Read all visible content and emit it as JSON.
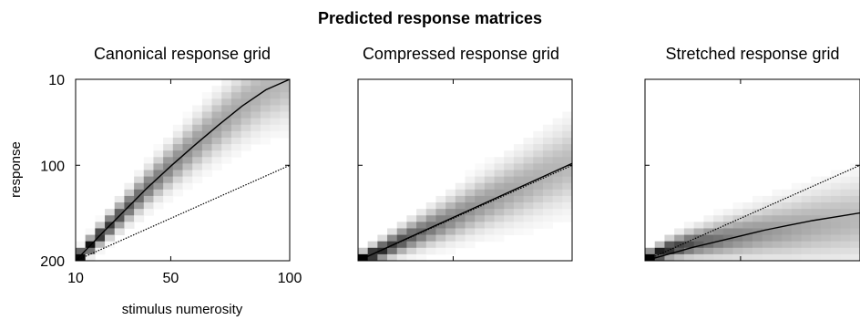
{
  "figure_title": "Predicted response matrices",
  "chart_data": [
    {
      "type": "heatmap",
      "title": "Canonical response grid",
      "xlabel": "stimulus numerosity",
      "ylabel": "response",
      "x_ticks": [
        10,
        50,
        100
      ],
      "y_ticks": [
        10,
        100,
        200
      ],
      "xlim": [
        10,
        100
      ],
      "ylim": [
        10,
        200
      ],
      "y_axis_inverted": true,
      "series": [
        {
          "style": "solid",
          "x": [
            10,
            20,
            30,
            40,
            50,
            60,
            70,
            80,
            90,
            100
          ],
          "y": [
            200,
            174,
            149,
            124,
            101,
            79,
            58,
            38,
            21,
            10
          ]
        },
        {
          "style": "dotted",
          "x": [
            10,
            100
          ],
          "y": [
            200,
            100
          ]
        }
      ],
      "density_ridge": {
        "x": [
          10,
          20,
          30,
          40,
          50,
          60,
          70,
          80,
          90,
          100
        ],
        "y": [
          200,
          174,
          149,
          124,
          101,
          79,
          58,
          38,
          21,
          10
        ]
      }
    },
    {
      "type": "heatmap",
      "title": "Compressed response grid",
      "xlabel": "",
      "ylabel": "",
      "x_ticks": [],
      "y_ticks": [],
      "xlim": [
        10,
        100
      ],
      "ylim": [
        10,
        200
      ],
      "y_axis_inverted": true,
      "series": [
        {
          "style": "solid",
          "x": [
            10,
            100
          ],
          "y": [
            200,
            98
          ]
        },
        {
          "style": "dotted",
          "x": [
            10,
            100
          ],
          "y": [
            200,
            100
          ]
        }
      ],
      "density_ridge": {
        "x": [
          10,
          20,
          30,
          40,
          50,
          60,
          70,
          80,
          90,
          100
        ],
        "y": [
          200,
          189,
          177,
          166,
          155,
          143,
          132,
          121,
          109,
          98
        ]
      }
    },
    {
      "type": "heatmap",
      "title": "Stretched response grid",
      "xlabel": "",
      "ylabel": "",
      "x_ticks": [],
      "y_ticks": [],
      "xlim": [
        10,
        100
      ],
      "ylim": [
        10,
        200
      ],
      "y_axis_inverted": true,
      "series": [
        {
          "style": "solid",
          "x": [
            10,
            20,
            30,
            40,
            50,
            60,
            70,
            80,
            90,
            100
          ],
          "y": [
            200,
            193,
            186,
            180,
            174,
            168,
            163,
            158,
            154,
            150
          ]
        },
        {
          "style": "dotted",
          "x": [
            10,
            100
          ],
          "y": [
            200,
            100
          ]
        }
      ],
      "density_ridge": {
        "x": [
          10,
          20,
          30,
          40,
          50,
          60,
          70,
          80,
          90,
          100
        ],
        "y": [
          198,
          188,
          182,
          178,
          174,
          170,
          167,
          163,
          160,
          157
        ]
      }
    }
  ]
}
